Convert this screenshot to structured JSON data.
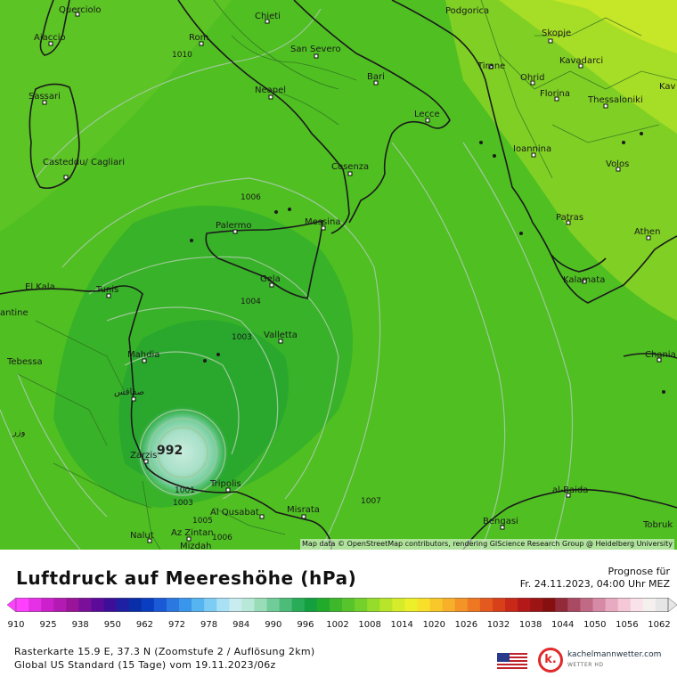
{
  "map": {
    "pressure_labels": [
      "1010",
      "1006",
      "1004",
      "1003",
      "992",
      "1001",
      "1003",
      "1005",
      "1006",
      "1007"
    ],
    "cities": [
      "Querciolo",
      "Ajaccio",
      "Chieti",
      "Podgorica",
      "Skopje",
      "Kavadarci",
      "Rom",
      "San Severo",
      "Tirane",
      "Ohrid",
      "Florina",
      "Thessaloniki",
      "Sassari",
      "Neapel",
      "Bari",
      "Lecce",
      "Ioannina",
      "Volos",
      "Casteddu/ Cagliari",
      "Cosenza",
      "Patras",
      "Athen",
      "Palermo",
      "Messina",
      "El Kala",
      "Tunis",
      "antine",
      "Gela",
      "Kalamata",
      "Valletta",
      "Tebessa",
      "Mahdia",
      "Chania",
      "صفاقس",
      "وزر",
      "Zarzis",
      "Tripolis",
      "al-Baida",
      "Al Qusabat",
      "Misrata",
      "Bengasi",
      "Tobruk",
      "Nalut",
      "Az Zintan",
      "Mizdah",
      "Kav"
    ],
    "attribution": "Map data © OpenStreetMap contributors, rendering GIScience Research Group @ Heidelberg University"
  },
  "legend": {
    "title": "Luftdruck auf Meereshöhe (hPa)",
    "forecast_label": "Prognose für",
    "forecast_time": "Fr. 24.11.2023, 04:00 Uhr MEZ",
    "ticks": [
      "910",
      "925",
      "938",
      "950",
      "962",
      "972",
      "978",
      "984",
      "990",
      "996",
      "1002",
      "1008",
      "1014",
      "1020",
      "1026",
      "1032",
      "1038",
      "1044",
      "1050",
      "1056",
      "1062"
    ],
    "colors": [
      "#ff40ff",
      "#e630e6",
      "#cc20cc",
      "#b31ab3",
      "#991499",
      "#7a0f99",
      "#5c0a99",
      "#3d0f99",
      "#1f1fa3",
      "#0a2ea8",
      "#0a3ec0",
      "#1a5ad6",
      "#2a78e0",
      "#3a96ea",
      "#56b4f0",
      "#7cccf4",
      "#a8e0f6",
      "#c8ecf0",
      "#b8e8d8",
      "#98dcb8",
      "#70cc98",
      "#4cbc78",
      "#28ac58",
      "#14a040",
      "#22aa2a",
      "#3cb82a",
      "#56c42a",
      "#74d02a",
      "#96dc2a",
      "#b8e42a",
      "#d6ec2a",
      "#ecf02a",
      "#f8e02a",
      "#f8c82a",
      "#f8b02a",
      "#f49426",
      "#ee7822",
      "#e45a1e",
      "#d8401a",
      "#c82818",
      "#b41818",
      "#9c1414",
      "#861010",
      "#922a3a",
      "#aa4a62",
      "#c06a86",
      "#d68aa6",
      "#e8aac0",
      "#f4c8d6",
      "#fae2ea",
      "#f4f0ee",
      "#e6e6e6"
    ],
    "info_line1": "Rasterkarte 15.9 E, 37.3 N (Zoomstufe 2 / Auflösung 2km)",
    "info_line2": "Global US Standard (15 Tage) vom 19.11.2023/06z",
    "brand_name": "kachelmannwetter.com",
    "brand_sub": "WETTER HD",
    "brand_letter": "k."
  }
}
